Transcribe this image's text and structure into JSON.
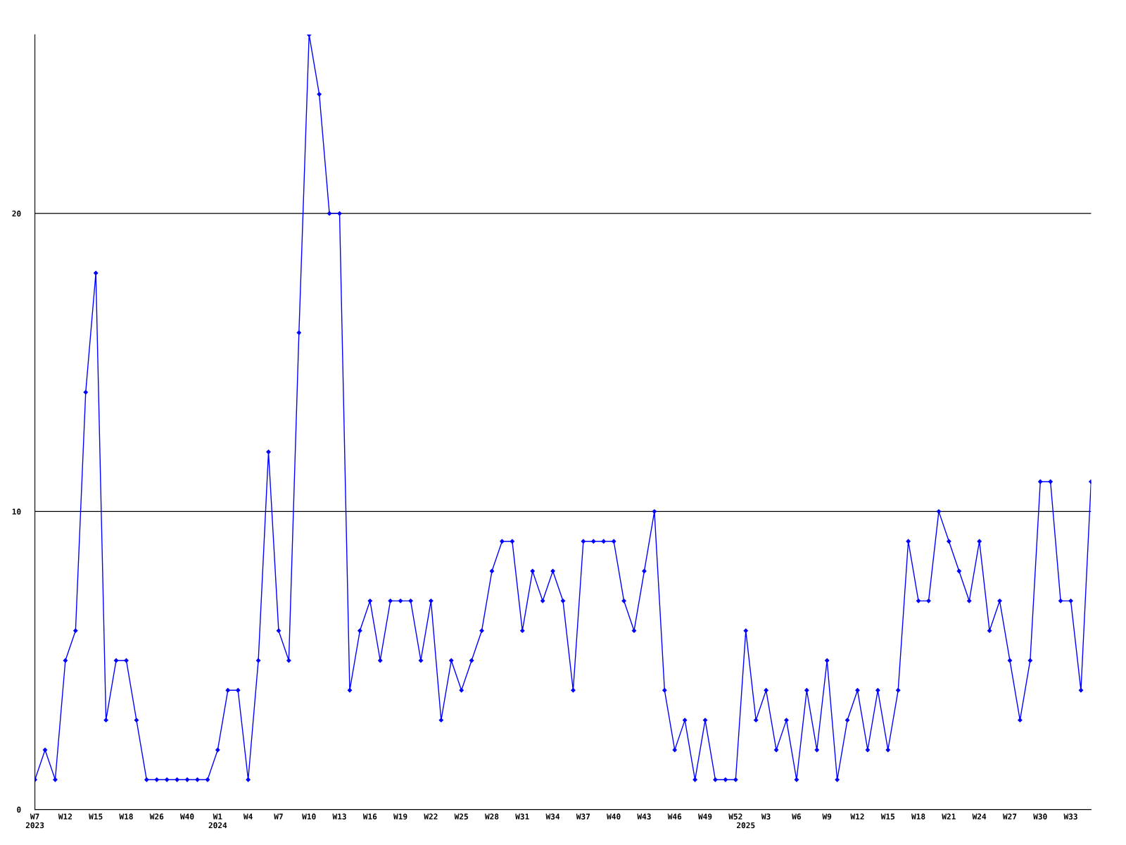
{
  "chart_data": {
    "type": "line",
    "categories": [
      "W7\n2023",
      null,
      null,
      "W12",
      null,
      null,
      "W15",
      null,
      null,
      "W18",
      null,
      null,
      "W26",
      null,
      null,
      "W40",
      null,
      null,
      "W1\n2024",
      null,
      null,
      "W4",
      null,
      null,
      "W7",
      null,
      null,
      "W10",
      null,
      null,
      "W13",
      null,
      null,
      "W16",
      null,
      null,
      "W19",
      null,
      null,
      "W22",
      null,
      null,
      "W25",
      null,
      null,
      "W28",
      null,
      null,
      "W31",
      null,
      null,
      "W34",
      null,
      null,
      "W37",
      null,
      null,
      "W40",
      null,
      null,
      "W43",
      null,
      null,
      "W46",
      null,
      null,
      "W49",
      null,
      null,
      "W52",
      "\n2025",
      null,
      "W3",
      null,
      null,
      "W6",
      null,
      null,
      "W9",
      null,
      null,
      "W12",
      null,
      null,
      "W15",
      null,
      null,
      "W18",
      null,
      null,
      "W21",
      null,
      null,
      "W24",
      null,
      null,
      "W27",
      null,
      null,
      "W30",
      null,
      null,
      "W33",
      null,
      null
    ],
    "series": [
      {
        "color": "#0000ff",
        "values": [
          1,
          2,
          1,
          5,
          6,
          14,
          18,
          3,
          5,
          5,
          3,
          1,
          1,
          1,
          1,
          1,
          1,
          1,
          2,
          4,
          4,
          1,
          5,
          12,
          6,
          5,
          16,
          26,
          24,
          20,
          20,
          4,
          6,
          7,
          5,
          7,
          7,
          7,
          5,
          7,
          3,
          5,
          4,
          5,
          6,
          8,
          9,
          9,
          6,
          8,
          7,
          8,
          7,
          4,
          9,
          9,
          9,
          9,
          7,
          6,
          8,
          10,
          4,
          2,
          3,
          1,
          3,
          1,
          1,
          1,
          6,
          3,
          4,
          2,
          3,
          1,
          4,
          2,
          5,
          1,
          3,
          4,
          2,
          4,
          2,
          4,
          9,
          7,
          7,
          10,
          9,
          8,
          7,
          9,
          6,
          7,
          5,
          3,
          5,
          11,
          11,
          7,
          7,
          4,
          11
        ]
      }
    ],
    "ylim": [
      0,
      26
    ],
    "yticks": [
      0,
      10,
      20
    ],
    "grid": "y",
    "marker": "diamond",
    "line_style": "solid"
  }
}
